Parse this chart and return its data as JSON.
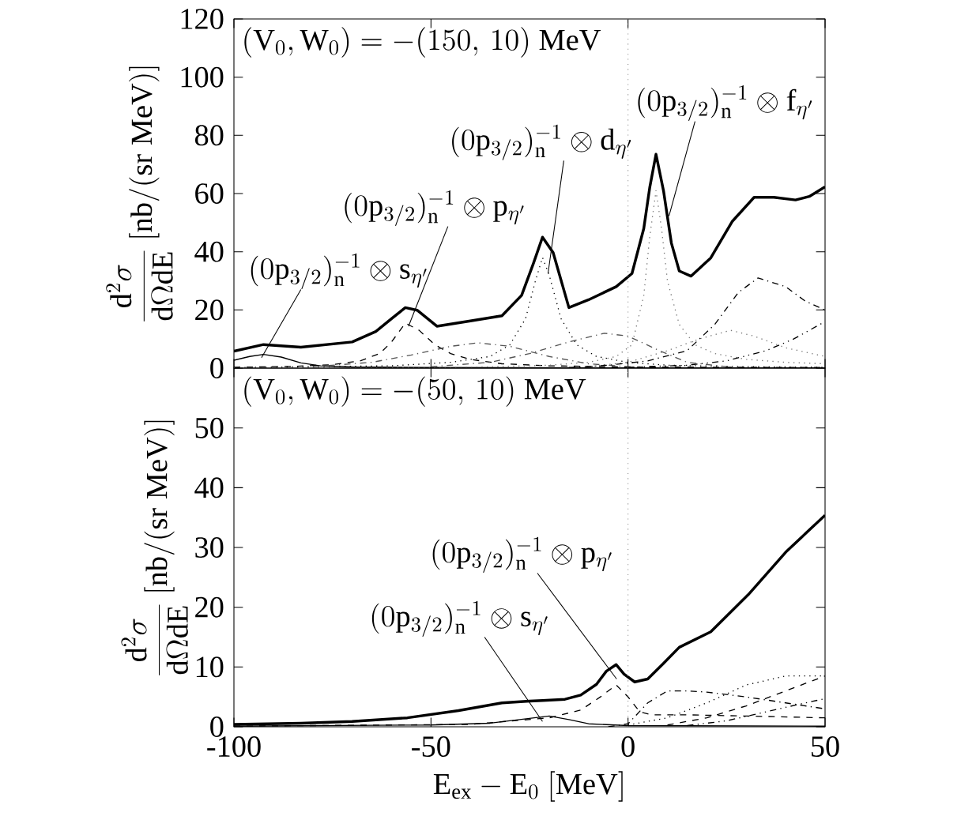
{
  "chart_data": [
    {
      "type": "line",
      "title": "(\\mathrm{V}_0,\\mathrm{W}_0)=-(150,\\,10)\\ \\mathrm{MeV}",
      "ylabel": "\\frac{\\mathrm{d}^2\\sigma}{\\mathrm{d}\\Omega\\mathrm{d}\\mathrm{E}}\\ [\\mathrm{nb/(sr\\;MeV)}]",
      "xlim": [
        -100,
        50
      ],
      "xticks": [
        -100,
        -50,
        0,
        50
      ],
      "ylim": [
        0,
        120
      ],
      "yticks": [
        0,
        20,
        40,
        60,
        80,
        100,
        120
      ],
      "tick_labels": "y",
      "ref_lines": [
        {
          "axis": "x",
          "value": 0,
          "color": "#888888",
          "line_style": "dotted"
        }
      ],
      "annotations": [
        {
          "text": "(0\\mathrm{p}_{3/2})_{\\mathrm{n}}^{-1}\\otimes\\mathrm{s}_{\\eta'}",
          "x": -93,
          "y": 3.6
        },
        {
          "text": "(0\\mathrm{p}_{3/2})_{\\mathrm{n}}^{-1}\\otimes\\mathrm{p}_{\\eta'}",
          "x": -55.7,
          "y": 14.4
        },
        {
          "text": "(0\\mathrm{p}_{3/2})_{\\mathrm{n}}^{-1}\\otimes\\mathrm{d}_{\\eta'}",
          "x": -20.3,
          "y": 32.5
        },
        {
          "text": "(0\\mathrm{p}_{3/2})_{\\mathrm{n}}^{-1}\\otimes\\mathrm{f}_{\\eta'}",
          "x": 10.4,
          "y": 52.3
        }
      ],
      "series": [
        {
          "color": "#000000",
          "line_style": "solid",
          "x": [
            -100,
            -92.5,
            -83,
            -70,
            -64,
            -60,
            -56.5,
            -53.5,
            -48.5,
            -40,
            -32,
            -27,
            -24,
            -21.7,
            -19,
            -15,
            -10,
            -3,
            1,
            4,
            5.5,
            7.1,
            9,
            11,
            13,
            16,
            21,
            26.5,
            32,
            37,
            42.5,
            46,
            50
          ],
          "values": [
            5.8,
            8.1,
            7.2,
            9,
            12.6,
            17,
            20.8,
            19.9,
            14.4,
            16.2,
            18,
            25,
            36,
            45,
            39.7,
            20.8,
            23.5,
            28,
            32.5,
            48,
            62,
            73.5,
            61,
            43,
            33.4,
            31.6,
            37.9,
            50.5,
            58.7,
            58.7,
            57.8,
            59,
            62.3
          ]
        },
        {
          "color": "#000000",
          "line_style": "solid",
          "x": [
            -100,
            -96,
            -92.5,
            -88,
            -83,
            -78,
            -70,
            -50,
            0,
            50
          ],
          "values": [
            2.7,
            4,
            4.7,
            3.8,
            1.8,
            0.8,
            0.4,
            0.2,
            0.1,
            0.1
          ]
        },
        {
          "color": "#000000",
          "line_style": "dashed",
          "x": [
            -100,
            -85,
            -75,
            -68,
            -63,
            -60,
            -56.5,
            -53,
            -49,
            -45,
            -40,
            -32,
            -20,
            0,
            50
          ],
          "values": [
            0.3,
            0.6,
            1.2,
            2.5,
            5,
            9,
            15.5,
            13,
            8,
            5,
            3,
            1.5,
            0.8,
            0.4,
            0.2
          ]
        },
        {
          "color": "#000000",
          "line_style": "dotted",
          "x": [
            -100,
            -60,
            -45,
            -35,
            -30,
            -26,
            -23.5,
            -21.7,
            -20,
            -17,
            -13,
            -8,
            0,
            10,
            30,
            50
          ],
          "values": [
            0.2,
            0.8,
            2,
            4,
            8,
            17,
            30,
            38,
            32,
            17,
            8,
            4,
            2,
            1,
            0.5,
            0.3
          ]
        },
        {
          "color": "#777777",
          "line_style": "dotted",
          "x": [
            -100,
            -40,
            -20,
            -10,
            -3,
            1,
            4,
            5.5,
            7.1,
            8.5,
            10,
            13,
            17,
            22,
            30,
            40,
            50
          ],
          "values": [
            0,
            0.3,
            1,
            2,
            4,
            8,
            25,
            45,
            61,
            48,
            30,
            15,
            8,
            5,
            3,
            2,
            1.5
          ]
        },
        {
          "color": "#555555",
          "line_style": "dashdot",
          "x": [
            -80,
            -65,
            -55,
            -45,
            -38,
            -30,
            -20,
            -10,
            0
          ],
          "values": [
            0.5,
            2,
            4.5,
            7.5,
            8.7,
            7.5,
            4,
            1.5,
            0.5
          ]
        },
        {
          "color": "#555555",
          "line_style": "dashdot",
          "x": [
            -50,
            -35,
            -25,
            -15,
            -6,
            0,
            8,
            15,
            25
          ],
          "values": [
            0.5,
            2,
            5,
            9,
            12,
            11,
            6,
            2,
            0.5
          ]
        },
        {
          "color": "#777777",
          "line_style": "dotted",
          "x": [
            -10,
            0,
            10,
            18,
            26,
            32,
            40,
            50
          ],
          "values": [
            0.5,
            2,
            6,
            10,
            13,
            11,
            7,
            4
          ]
        },
        {
          "color": "#000000",
          "line_style": "dashdot",
          "x": [
            -15,
            -5,
            5,
            15,
            22,
            28,
            33,
            40,
            45,
            50
          ],
          "values": [
            0.2,
            1,
            2.5,
            6,
            15,
            26,
            31,
            28,
            23,
            20
          ]
        },
        {
          "color": "#000000",
          "line_style": "dashdotdot",
          "x": [
            0,
            15,
            25,
            35,
            42,
            50
          ],
          "values": [
            0.3,
            1,
            2.5,
            6,
            10,
            16
          ]
        }
      ]
    },
    {
      "type": "line",
      "title": "(\\mathrm{V}_0,\\mathrm{W}_0)=-(50,\\,10)\\ \\mathrm{MeV}",
      "ylabel": "\\frac{\\mathrm{d}^2\\sigma}{\\mathrm{d}\\Omega\\mathrm{d}\\mathrm{E}}\\ [\\mathrm{nb/(sr\\;MeV)}]",
      "xlabel": "\\mathrm{E}_{\\mathrm{ex}}-\\mathrm{E}_0\\ [\\mathrm{MeV}]",
      "xlim": [
        -100,
        50
      ],
      "xticks": [
        -100,
        -50,
        0,
        50
      ],
      "ylim": [
        0,
        60
      ],
      "yticks": [
        0,
        10,
        20,
        30,
        40,
        50
      ],
      "ref_lines": [
        {
          "axis": "x",
          "value": 0,
          "color": "#888888",
          "line_style": "dotted"
        }
      ],
      "annotations": [
        {
          "text": "(0\\mathrm{p}_{3/2})_{\\mathrm{n}}^{-1}\\otimes\\mathrm{s}_{\\eta'}",
          "x": -21.7,
          "y": 0.9
        },
        {
          "text": "(0\\mathrm{p}_{3/2})_{\\mathrm{n}}^{-1}\\otimes\\mathrm{p}_{\\eta'}",
          "x": -2.9,
          "y": 8
        }
      ],
      "series": [
        {
          "color": "#000000",
          "line_style": "solid",
          "x": [
            -100,
            -83,
            -70,
            -56,
            -43,
            -32,
            -25,
            -21.7,
            -16,
            -12,
            -8,
            -5.5,
            -3,
            -1,
            1.7,
            5,
            9,
            13,
            21,
            30.5,
            40,
            50
          ],
          "values": [
            0.4,
            0.6,
            0.9,
            1.5,
            2.7,
            4,
            4.3,
            4.4,
            4.6,
            5.3,
            7.1,
            9.3,
            10.4,
            8.8,
            7.5,
            8,
            10.6,
            13.3,
            15.9,
            22.1,
            29.2,
            35.4
          ]
        },
        {
          "color": "#000000",
          "line_style": "solid",
          "x": [
            -100,
            -50,
            -35,
            -25,
            -20,
            -15,
            -10,
            0,
            50
          ],
          "values": [
            0.1,
            0.3,
            0.6,
            1.4,
            1.8,
            1.2,
            0.5,
            0.2,
            0.1
          ]
        },
        {
          "color": "#000000",
          "line_style": "dashed",
          "x": [
            -100,
            -40,
            -20,
            -12,
            -7,
            -3,
            0,
            3,
            6,
            15,
            30,
            50
          ],
          "values": [
            0.1,
            0.4,
            1.5,
            2.8,
            5,
            7,
            5,
            2.5,
            2,
            2,
            1.8,
            1.5
          ]
        },
        {
          "color": "#000000",
          "line_style": "dashdot",
          "x": [
            -5,
            0,
            5,
            10,
            15,
            20,
            30,
            40,
            50
          ],
          "values": [
            0,
            0.5,
            4,
            6,
            6,
            5.8,
            5,
            4,
            3
          ]
        },
        {
          "color": "#000000",
          "line_style": "dotted",
          "x": [
            0,
            10,
            20,
            30,
            40,
            50
          ],
          "values": [
            0.3,
            1.5,
            4,
            7,
            8.5,
            8.5
          ]
        },
        {
          "color": "#000000",
          "line_style": "dashed",
          "x": [
            10,
            20,
            30,
            40,
            50
          ],
          "values": [
            0.3,
            1.5,
            3.5,
            6,
            8.5
          ]
        },
        {
          "color": "#000000",
          "line_style": "dashdotdot",
          "x": [
            15,
            25,
            35,
            45,
            50
          ],
          "values": [
            0.2,
            1,
            2.5,
            4,
            4.7
          ]
        }
      ]
    }
  ]
}
